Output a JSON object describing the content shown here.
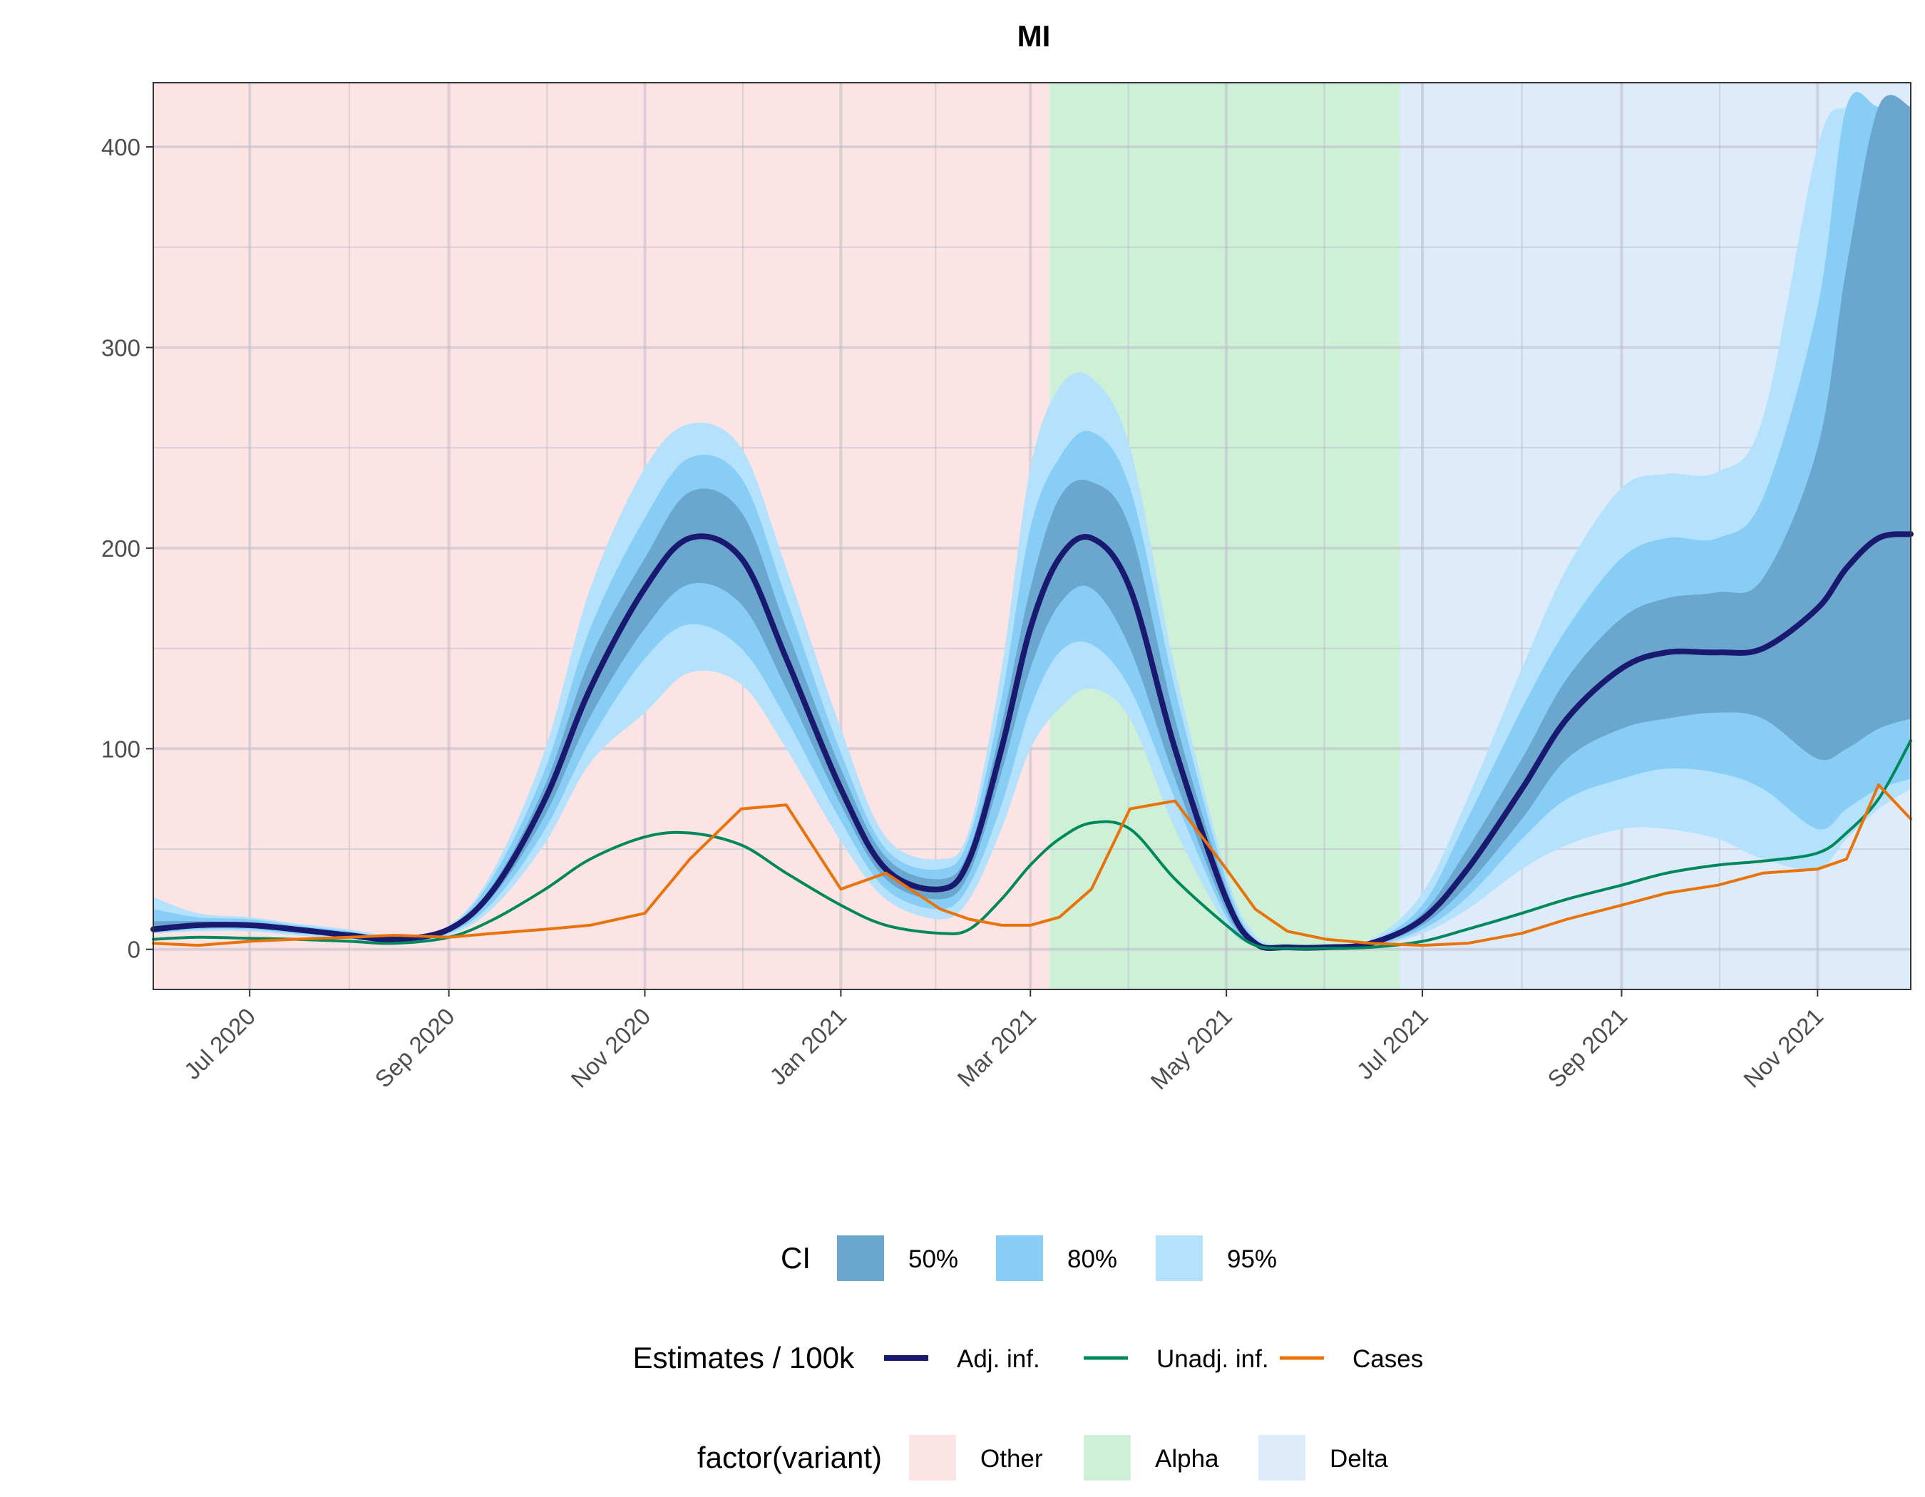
{
  "chart_data": {
    "type": "line",
    "title": "MI",
    "xlabel": "",
    "ylabel": "",
    "xlim": [
      "2020-06-01",
      "2021-11-30"
    ],
    "ylim": [
      -20,
      432
    ],
    "grid": true,
    "x_ticks": [
      "2020-07-01",
      "2020-09-01",
      "2020-11-01",
      "2021-01-01",
      "2021-03-01",
      "2021-05-01",
      "2021-07-01",
      "2021-09-01",
      "2021-11-01"
    ],
    "x_tick_labels": [
      "Jul 2020",
      "Sep 2020",
      "Nov 2020",
      "Jan 2021",
      "Mar 2021",
      "May 2021",
      "Jul 2021",
      "Sep 2021",
      "Nov 2021"
    ],
    "y_ticks": [
      0,
      100,
      200,
      300,
      400
    ],
    "y_tick_labels": [
      "0",
      "100",
      "200",
      "300",
      "400"
    ],
    "variant_periods": [
      {
        "name": "Other",
        "start": "2020-06-01",
        "end": "2021-03-07",
        "color": "#fde4e4"
      },
      {
        "name": "Alpha",
        "start": "2021-03-07",
        "end": "2021-06-24",
        "color": "#cdf0d7"
      },
      {
        "name": "Delta",
        "start": "2021-06-24",
        "end": "2021-11-30",
        "color": "#deebfb"
      }
    ],
    "x": [
      "2020-06-01",
      "2020-06-15",
      "2020-07-01",
      "2020-07-15",
      "2020-08-01",
      "2020-08-15",
      "2020-09-01",
      "2020-09-15",
      "2020-10-01",
      "2020-10-15",
      "2020-11-01",
      "2020-11-15",
      "2020-12-01",
      "2020-12-15",
      "2021-01-01",
      "2021-01-15",
      "2021-02-01",
      "2021-02-10",
      "2021-02-20",
      "2021-03-01",
      "2021-03-10",
      "2021-03-20",
      "2021-04-01",
      "2021-04-15",
      "2021-05-01",
      "2021-05-10",
      "2021-05-20",
      "2021-06-01",
      "2021-06-15",
      "2021-07-01",
      "2021-07-15",
      "2021-08-01",
      "2021-08-15",
      "2021-09-01",
      "2021-09-15",
      "2021-10-01",
      "2021-10-15",
      "2021-11-01",
      "2021-11-10",
      "2021-11-20",
      "2021-11-30"
    ],
    "series": [
      {
        "name": "Adj. inf.",
        "color": "#191970",
        "values": [
          10,
          12,
          12,
          10,
          7,
          5,
          10,
          30,
          75,
          130,
          180,
          205,
          195,
          145,
          80,
          40,
          30,
          45,
          100,
          160,
          195,
          205,
          180,
          100,
          25,
          3,
          1,
          1,
          3,
          15,
          40,
          80,
          115,
          140,
          148,
          148,
          150,
          170,
          190,
          205,
          207
        ]
      },
      {
        "name": "Unadj. inf.",
        "color": "#00875a",
        "values": [
          5,
          6,
          5.5,
          5,
          4,
          3,
          6,
          15,
          30,
          45,
          56,
          58,
          52,
          38,
          22,
          12,
          8,
          10,
          25,
          42,
          55,
          63,
          60,
          35,
          12,
          2,
          0.5,
          0.5,
          1,
          4,
          10,
          18,
          25,
          32,
          38,
          42,
          44,
          48,
          58,
          75,
          104
        ]
      },
      {
        "name": "Cases",
        "color": "#e8730a",
        "values": [
          3,
          2,
          4,
          5,
          6,
          7,
          6,
          8,
          10,
          12,
          18,
          45,
          70,
          72,
          30,
          38,
          20,
          15,
          12,
          12,
          16,
          30,
          70,
          74,
          40,
          20,
          9,
          5,
          3,
          2,
          3,
          8,
          15,
          22,
          28,
          32,
          38,
          40,
          45,
          82,
          65
        ]
      }
    ],
    "ci_bands": [
      {
        "name": "95%",
        "color": "#b4e1fb",
        "lower": [
          8,
          9,
          9,
          7,
          5,
          4,
          7,
          21,
          53,
          93,
          118,
          138,
          132,
          100,
          54,
          25,
          15,
          25,
          60,
          100,
          120,
          130,
          115,
          60,
          12,
          2,
          0.5,
          0.5,
          1,
          8,
          20,
          40,
          52,
          60,
          60,
          55,
          45,
          40,
          55,
          70,
          80
        ],
        "upper": [
          26,
          18,
          16,
          13,
          10,
          7,
          12,
          40,
          100,
          180,
          240,
          262,
          250,
          190,
          110,
          56,
          45,
          60,
          140,
          240,
          280,
          285,
          250,
          140,
          38,
          7,
          2,
          2,
          5,
          28,
          75,
          140,
          190,
          230,
          237,
          238,
          265,
          400,
          420,
          420,
          420
        ]
      },
      {
        "name": "80%",
        "color": "#88cdf6",
        "lower": [
          8,
          10,
          10,
          8,
          6,
          4,
          8,
          24,
          60,
          104,
          145,
          162,
          150,
          115,
          64,
          30,
          20,
          32,
          72,
          120,
          148,
          152,
          130,
          75,
          16,
          2.5,
          0.7,
          0.7,
          1.5,
          10,
          26,
          55,
          75,
          85,
          90,
          88,
          80,
          60,
          70,
          80,
          85
        ],
        "upper": [
          20,
          16,
          15,
          12,
          9,
          6,
          11,
          37,
          90,
          160,
          215,
          245,
          235,
          175,
          98,
          50,
          40,
          56,
          125,
          210,
          245,
          258,
          230,
          130,
          34,
          5,
          1.8,
          1.8,
          4,
          22,
          65,
          120,
          160,
          195,
          205,
          205,
          225,
          320,
          420,
          420,
          420
        ]
      },
      {
        "name": "50%",
        "color": "#6aa6cd",
        "lower": [
          9,
          11,
          11,
          9,
          6,
          4,
          9,
          27,
          67,
          116,
          160,
          182,
          172,
          130,
          72,
          35,
          25,
          38,
          88,
          140,
          172,
          180,
          150,
          85,
          19,
          2.8,
          0.8,
          0.8,
          2,
          12,
          32,
          65,
          95,
          110,
          115,
          118,
          115,
          95,
          100,
          110,
          115
        ],
        "upper": [
          14,
          14,
          13,
          11,
          8,
          6,
          11,
          33,
          82,
          145,
          195,
          228,
          218,
          160,
          90,
          46,
          35,
          50,
          112,
          180,
          225,
          233,
          210,
          115,
          30,
          4,
          1.5,
          1.5,
          3.5,
          18,
          50,
          95,
          135,
          165,
          175,
          178,
          185,
          250,
          340,
          420,
          420
        ]
      }
    ],
    "legends": [
      {
        "title": "CI",
        "items": [
          {
            "label": "50%",
            "color": "#6aa6cd"
          },
          {
            "label": "80%",
            "color": "#88cdf6"
          },
          {
            "label": "95%",
            "color": "#b4e1fb"
          }
        ]
      },
      {
        "title": "Estimates / 100k",
        "items": [
          {
            "label": "Adj. inf.",
            "color": "#191970"
          },
          {
            "label": "Unadj. inf.",
            "color": "#00875a"
          },
          {
            "label": "Cases",
            "color": "#e8730a"
          }
        ]
      },
      {
        "title": "factor(variant)",
        "items": [
          {
            "label": "Other",
            "color": "#fde4e4"
          },
          {
            "label": "Alpha",
            "color": "#cdf0d7"
          },
          {
            "label": "Delta",
            "color": "#deebfb"
          }
        ]
      }
    ],
    "legend_position": "bottom"
  }
}
